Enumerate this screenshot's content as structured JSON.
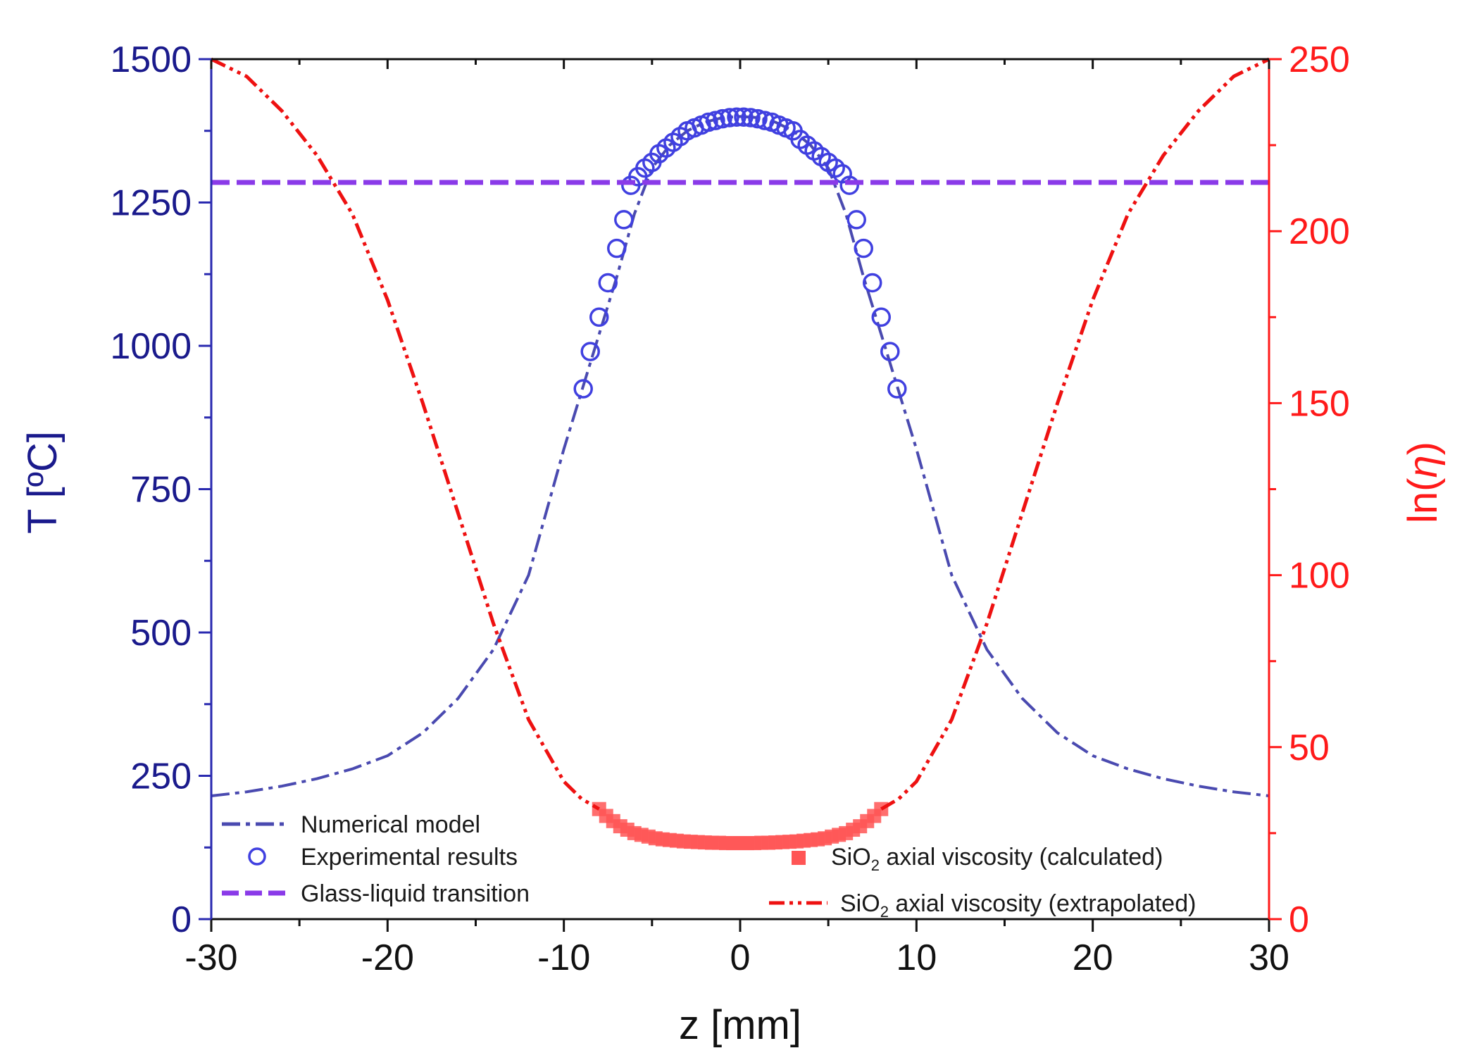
{
  "chart_data": {
    "type": "line",
    "x_axis": {
      "label": "z [mm]",
      "range": [
        -30,
        30
      ],
      "ticks": [
        "-30",
        "-20",
        "-10",
        "0",
        "10",
        "20",
        "30"
      ],
      "tick_values": [
        -30,
        -20,
        -10,
        0,
        10,
        20,
        30
      ]
    },
    "y_left": {
      "label": "T [ºC]",
      "range": [
        0,
        1500
      ],
      "ticks": [
        "0",
        "250",
        "500",
        "750",
        "1000",
        "1250",
        "1500"
      ],
      "tick_values": [
        0,
        250,
        500,
        750,
        1000,
        1250,
        1500
      ]
    },
    "y_right": {
      "label_prefix": "ln(",
      "label_symbol": "η",
      "label_suffix": ")",
      "range": [
        0,
        250
      ],
      "ticks": [
        "0",
        "50",
        "100",
        "150",
        "200",
        "250"
      ],
      "tick_values": [
        0,
        50,
        100,
        150,
        200,
        250
      ]
    },
    "series": [
      {
        "name": "Numerical model",
        "axis": "left",
        "style": "dash-dot",
        "color": "#4a4ab0",
        "x": [
          -30,
          -28,
          -26,
          -24,
          -22,
          -20,
          -18,
          -16,
          -14,
          -12,
          -10,
          -9,
          -8,
          -7,
          -6,
          -5,
          -4,
          -3,
          -2,
          -1,
          0,
          1,
          2,
          3,
          4,
          5,
          6,
          7,
          8,
          9,
          10,
          12,
          14,
          16,
          18,
          20,
          22,
          24,
          26,
          28,
          30
        ],
        "y": [
          215,
          222,
          232,
          245,
          262,
          285,
          325,
          385,
          470,
          600,
          820,
          920,
          1020,
          1120,
          1230,
          1310,
          1350,
          1375,
          1390,
          1398,
          1400,
          1398,
          1390,
          1375,
          1350,
          1310,
          1230,
          1120,
          1020,
          920,
          820,
          600,
          470,
          385,
          325,
          285,
          262,
          245,
          232,
          222,
          215
        ]
      },
      {
        "name": "Experimental results",
        "axis": "left",
        "style": "open-circle",
        "color": "#4040e0",
        "x": [
          -8.9,
          -8.5,
          -8.0,
          -7.5,
          -7.0,
          -6.6,
          -6.2,
          -5.8,
          -5.4,
          -5.0,
          -4.6,
          -4.2,
          -3.8,
          -3.4,
          -3.0,
          -2.6,
          -2.2,
          -1.8,
          -1.4,
          -1.0,
          -0.6,
          -0.2,
          0.2,
          0.6,
          1.0,
          1.4,
          1.8,
          2.2,
          2.6,
          3.0,
          3.4,
          3.8,
          4.2,
          4.6,
          5.0,
          5.4,
          5.8,
          6.2,
          6.6,
          7.0,
          7.5,
          8.0,
          8.5,
          8.9
        ],
        "y": [
          925,
          990,
          1050,
          1110,
          1170,
          1220,
          1280,
          1295,
          1310,
          1320,
          1335,
          1345,
          1355,
          1365,
          1375,
          1380,
          1385,
          1390,
          1393,
          1396,
          1398,
          1399,
          1399,
          1398,
          1396,
          1393,
          1390,
          1385,
          1380,
          1375,
          1360,
          1350,
          1340,
          1330,
          1320,
          1310,
          1300,
          1280,
          1220,
          1170,
          1110,
          1050,
          990,
          925
        ]
      },
      {
        "name": "Glass-liquid transition",
        "axis": "left",
        "style": "dashed",
        "color": "#8a3ae8",
        "x": [
          -30,
          30
        ],
        "y": [
          1285,
          1285
        ]
      },
      {
        "name": "SiO₂ axial viscosity (calculated)",
        "label_main": "SiO",
        "label_sub": "2",
        "label_rest": " axial viscosity (calculated)",
        "axis": "right",
        "style": "filled-square",
        "color": "#ff5555",
        "x": [
          -8,
          -7.6,
          -7.2,
          -6.8,
          -6.4,
          -6.0,
          -5.6,
          -5.2,
          -4.8,
          -4.4,
          -4.0,
          -3.6,
          -3.2,
          -2.8,
          -2.4,
          -2.0,
          -1.6,
          -1.2,
          -0.8,
          -0.4,
          0,
          0.4,
          0.8,
          1.2,
          1.6,
          2.0,
          2.4,
          2.8,
          3.2,
          3.6,
          4.0,
          4.4,
          4.8,
          5.2,
          5.6,
          6.0,
          6.4,
          6.8,
          7.2,
          7.6,
          8.0
        ],
        "y": [
          32,
          30,
          28.5,
          27,
          26,
          25,
          24.5,
          24,
          23.5,
          23.2,
          23,
          22.8,
          22.6,
          22.5,
          22.4,
          22.3,
          22.2,
          22.2,
          22.1,
          22.1,
          22.1,
          22.1,
          22.1,
          22.2,
          22.2,
          22.3,
          22.4,
          22.5,
          22.6,
          22.8,
          23,
          23.2,
          23.5,
          24,
          24.5,
          25,
          26,
          27,
          28.5,
          30,
          32
        ]
      },
      {
        "name": "SiO₂ axial viscosity (extrapolated)",
        "label_main": "SiO",
        "label_sub": "2",
        "label_rest": " axial viscosity (extrapolated)",
        "axis": "right",
        "style": "dash-dot-dot",
        "color": "#ee1111",
        "x": [
          -30,
          -28,
          -26,
          -24,
          -22,
          -20,
          -18,
          -16,
          -14,
          -12,
          -10,
          -9,
          -8,
          8,
          9,
          10,
          12,
          14,
          16,
          18,
          20,
          22,
          24,
          26,
          28,
          30
        ],
        "y": [
          250,
          245,
          235,
          222,
          205,
          180,
          150,
          118,
          86,
          58,
          40,
          35,
          32,
          32,
          35,
          40,
          58,
          86,
          118,
          150,
          180,
          205,
          222,
          235,
          245,
          250
        ]
      }
    ],
    "legend_left": [
      "Numerical model",
      "Experimental results",
      "Glass-liquid transition"
    ],
    "legend_right_names": [
      "SiO₂ axial viscosity (calculated)",
      "SiO₂ axial viscosity (extrapolated)"
    ]
  }
}
